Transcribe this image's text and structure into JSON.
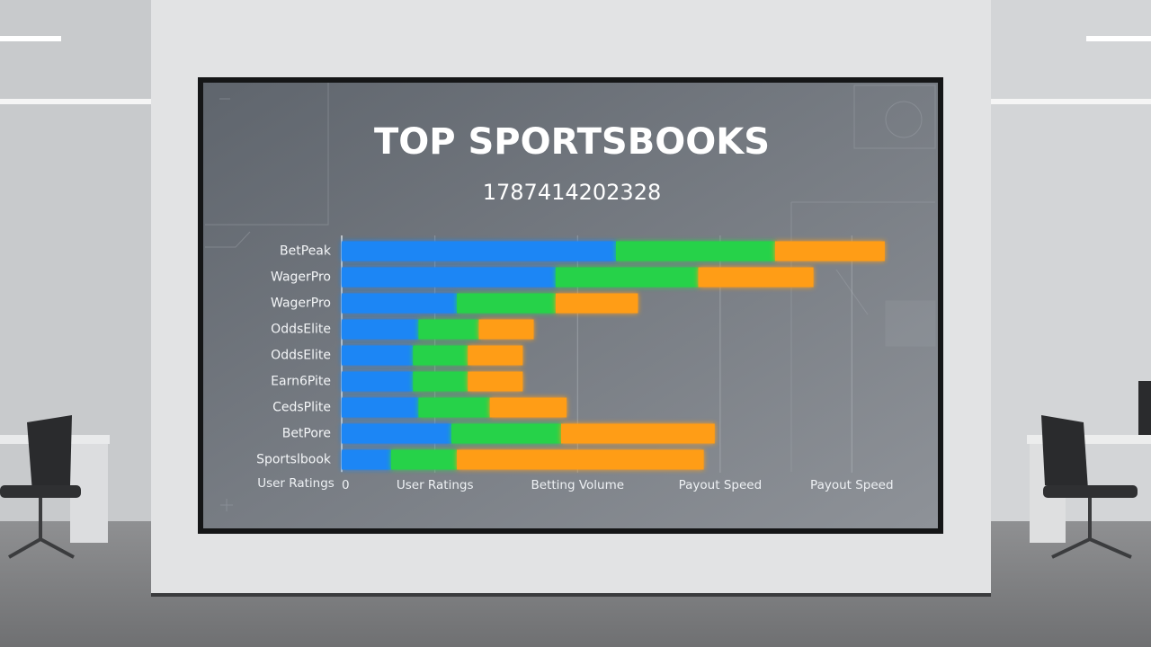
{
  "chart_data": {
    "type": "stacked-bar-horizontal",
    "title": "TOP SPORTSBOOKS",
    "subtitle": "1787414202328",
    "xlabel": "User Ratings",
    "categories": [
      "BetPeak",
      "WagerPro",
      "WagerPro",
      "OddsElite",
      "OddsElite",
      "Earn6Pite",
      "CedsPlite",
      "BetPore",
      "Sportslbook"
    ],
    "series": [
      {
        "color": "#1f86f5",
        "values": [
          50,
          39,
          21,
          14,
          13,
          13,
          14,
          20,
          9
        ]
      },
      {
        "color": "#25d24a",
        "values": [
          29,
          26,
          18,
          11,
          10,
          10,
          13,
          20,
          12
        ]
      },
      {
        "color": "#ff9d14",
        "values": [
          20,
          21,
          15,
          10,
          10,
          10,
          14,
          28,
          45
        ]
      }
    ],
    "xlim": [
      0,
      100
    ],
    "xticks": [
      0,
      {
        "value": 17,
        "label": "User Ratings"
      },
      {
        "value": 43,
        "label": "Betting Volume"
      },
      {
        "value": 69,
        "label": "Payout Speed"
      },
      {
        "value": 93,
        "label": "Payout Speed"
      }
    ],
    "grid": true
  }
}
